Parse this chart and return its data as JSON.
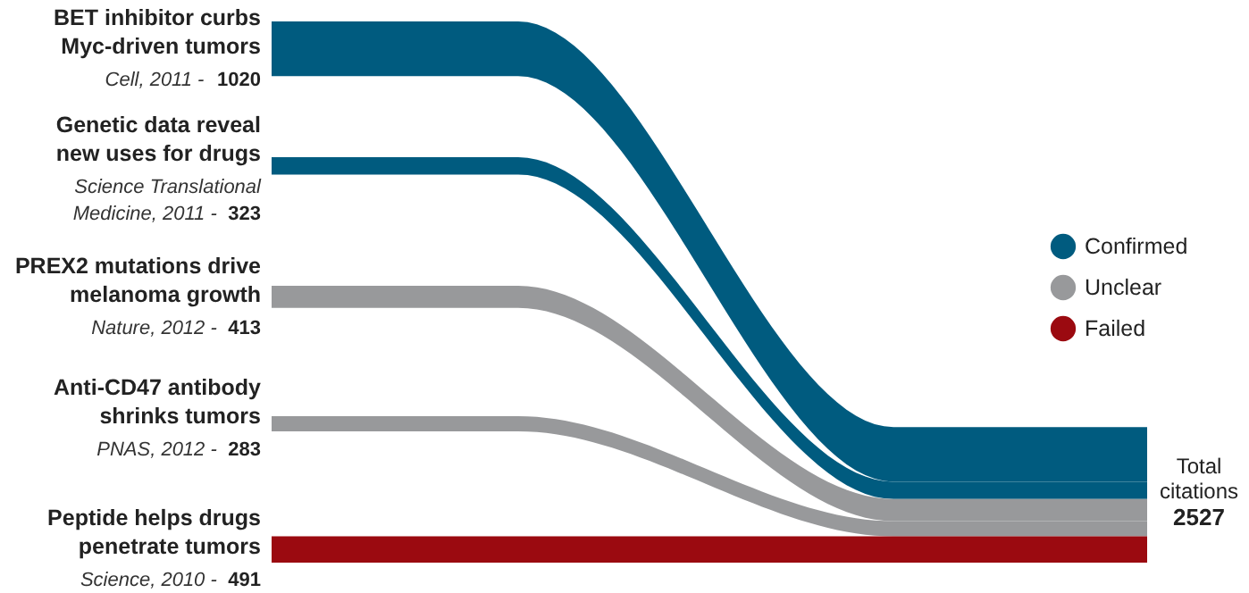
{
  "chart_data": {
    "type": "other",
    "categories": [
      "BET inhibitor curbs\nMyc-driven tumors",
      "Genetic data reveal\nnew uses for drugs",
      "PREX2 mutations drive\nmelanoma growth",
      "Anti-CD47 antibody\nshrinks tumors",
      "Peptide helps drugs\npenetrate tumors"
    ],
    "series": [
      {
        "name": "Confirmed",
        "color": "#005b7f",
        "values": [
          1020,
          323,
          null,
          null,
          null
        ]
      },
      {
        "name": "Unclear",
        "color": "#98999b",
        "values": [
          null,
          null,
          413,
          283,
          null
        ]
      },
      {
        "name": "Failed",
        "color": "#9b0a10",
        "values": [
          null,
          null,
          null,
          null,
          491
        ]
      }
    ],
    "annotations": [
      "Cell, 2011 -",
      "Science Translational\nMedicine, 2011 -",
      "Nature, 2012 -",
      "PNAS, 2012 -",
      "Science, 2010 -",
      "Total\ncitations",
      "2527"
    ],
    "legend": "right",
    "data_labels": true
  }
}
